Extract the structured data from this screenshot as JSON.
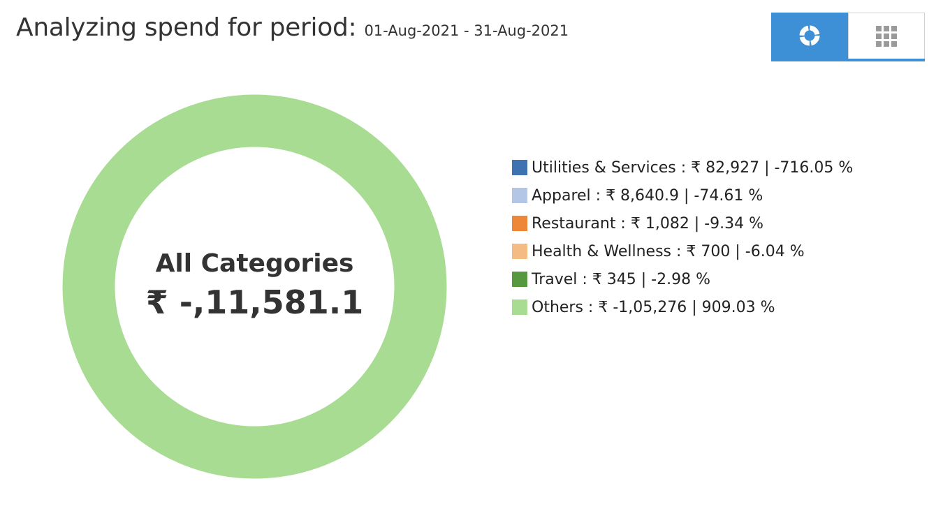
{
  "header": {
    "title": "Analyzing spend for period:",
    "period": "01-Aug-2021 - 31-Aug-2021"
  },
  "view_toggle": {
    "options": [
      {
        "icon": "donut-chart-icon",
        "active": true
      },
      {
        "icon": "grid-icon",
        "active": false
      }
    ]
  },
  "donut": {
    "center_label": "All Categories",
    "center_value": "₹ -,11,581.1"
  },
  "colors": {
    "accent": "#3d8fd6",
    "ring": "#a9dc93"
  },
  "chart_data": {
    "type": "pie",
    "variant": "donut",
    "total": -11581.1,
    "series": [
      {
        "name": "Utilities & Services",
        "value": 82927,
        "percent": -716.05,
        "color": "#3e72b0"
      },
      {
        "name": "Apparel",
        "value": 8640.9,
        "percent": -74.61,
        "color": "#b3c6e6"
      },
      {
        "name": "Restaurant",
        "value": 1082,
        "percent": -9.34,
        "color": "#ee8838"
      },
      {
        "name": "Health & Wellness",
        "value": 700,
        "percent": -6.04,
        "color": "#f5bb85"
      },
      {
        "name": "Travel",
        "value": 345,
        "percent": -2.98,
        "color": "#55983e"
      },
      {
        "name": "Others",
        "value": -105276,
        "percent": 909.03,
        "color": "#a9dc93"
      }
    ],
    "legend_items": [
      "Utilities & Services : ₹ 82,927 | -716.05 %",
      "Apparel : ₹ 8,640.9 | -74.61 %",
      "Restaurant : ₹ 1,082 | -9.34 %",
      "Health & Wellness : ₹ 700 | -6.04 %",
      "Travel : ₹ 345 | -2.98 %",
      "Others : ₹ -1,05,276 | 909.03 %"
    ],
    "legend_placement": "right"
  }
}
